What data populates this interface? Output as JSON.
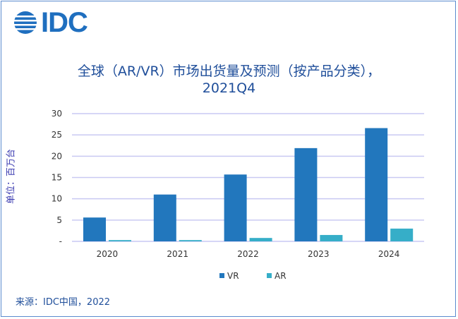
{
  "logo": {
    "text": "IDC"
  },
  "chart_data": {
    "type": "bar",
    "title_line1": "全球（AR/VR）市场出货量及预测（按产品分类），",
    "title_line2": "2021Q4",
    "ylabel": "单位：百万台",
    "xlabel": "",
    "categories": [
      "2020",
      "2021",
      "2022",
      "2023",
      "2024"
    ],
    "series": [
      {
        "name": "VR",
        "values": [
          5.6,
          11.0,
          15.7,
          21.9,
          26.6
        ],
        "color": "#2277bd"
      },
      {
        "name": "AR",
        "values": [
          0.3,
          0.3,
          0.8,
          1.5,
          3.0
        ],
        "color": "#36aec8"
      }
    ],
    "ylim": [
      0,
      30
    ],
    "yticks": [
      0,
      5,
      10,
      15,
      20,
      25,
      30
    ],
    "ytick_labels": [
      "-",
      "5",
      "10",
      "15",
      "20",
      "25",
      "30"
    ],
    "grid": true,
    "grid_color": "#c9c9f3",
    "legend_position": "bottom"
  },
  "source": "来源：IDC中国，2022"
}
